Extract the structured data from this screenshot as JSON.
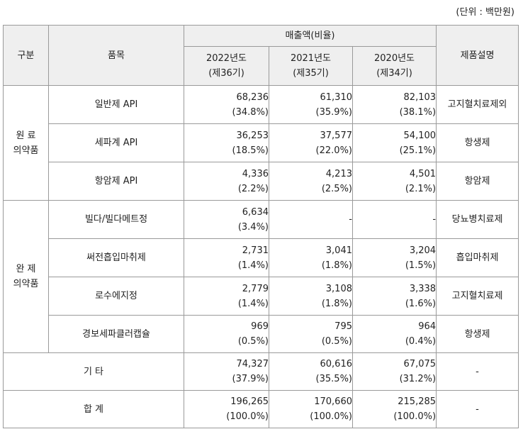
{
  "unit_note": "(단위 : 백만원)",
  "header": {
    "category": "구분",
    "item": "품목",
    "sales_group": "매출액(비율)",
    "desc": "제품설명",
    "years": [
      {
        "year": "2022년도",
        "term": "(제36기)"
      },
      {
        "year": "2021년도",
        "term": "(제35기)"
      },
      {
        "year": "2020년도",
        "term": "(제34기)"
      }
    ]
  },
  "groups": [
    {
      "label_line1": "원 료",
      "label_line2": "의약품",
      "rows": [
        {
          "item": "일반제 API",
          "values": [
            [
              "68,236",
              "(34.8%)"
            ],
            [
              "61,310",
              "(35.9%)"
            ],
            [
              "82,103",
              "(38.1%)"
            ]
          ],
          "desc": "고지혈치료제외"
        },
        {
          "item": "세파계 API",
          "values": [
            [
              "36,253",
              "(18.5%)"
            ],
            [
              "37,577",
              "(22.0%)"
            ],
            [
              "54,100",
              "(25.1%)"
            ]
          ],
          "desc": "항생제"
        },
        {
          "item": "항암제 API",
          "values": [
            [
              "4,336",
              "(2.2%)"
            ],
            [
              "4,213",
              "(2.5%)"
            ],
            [
              "4,501",
              "(2.1%)"
            ]
          ],
          "desc": "항암제"
        }
      ]
    },
    {
      "label_line1": "완 제",
      "label_line2": "의약품",
      "rows": [
        {
          "item": "빌다/빌다메트정",
          "values": [
            [
              "6,634",
              "(3.4%)"
            ],
            [
              "-",
              ""
            ],
            [
              "-",
              ""
            ]
          ],
          "desc": "당뇨병치료제"
        },
        {
          "item": "써전흡입마취제",
          "values": [
            [
              "2,731",
              "(1.4%)"
            ],
            [
              "3,041",
              "(1.8%)"
            ],
            [
              "3,204",
              "(1.5%)"
            ]
          ],
          "desc": "흡입마취제"
        },
        {
          "item": "로수에지정",
          "values": [
            [
              "2,779",
              "(1.4%)"
            ],
            [
              "3,108",
              "(1.8%)"
            ],
            [
              "3,338",
              "(1.6%)"
            ]
          ],
          "desc": "고지혈치료제"
        },
        {
          "item": "경보세파클러캡슐",
          "values": [
            [
              "969",
              "(0.5%)"
            ],
            [
              "795",
              "(0.5%)"
            ],
            [
              "964",
              "(0.4%)"
            ]
          ],
          "desc": "항생제"
        }
      ]
    }
  ],
  "totals": [
    {
      "label": "기 타",
      "values": [
        [
          "74,327",
          "(37.9%)"
        ],
        [
          "60,616",
          "(35.5%)"
        ],
        [
          "67,075",
          "(31.2%)"
        ]
      ],
      "desc": "-"
    },
    {
      "label": "합 계",
      "values": [
        [
          "196,265",
          "(100.0%)"
        ],
        [
          "170,660",
          "(100.0%)"
        ],
        [
          "215,285",
          "(100.0%)"
        ]
      ],
      "desc": "-"
    }
  ]
}
